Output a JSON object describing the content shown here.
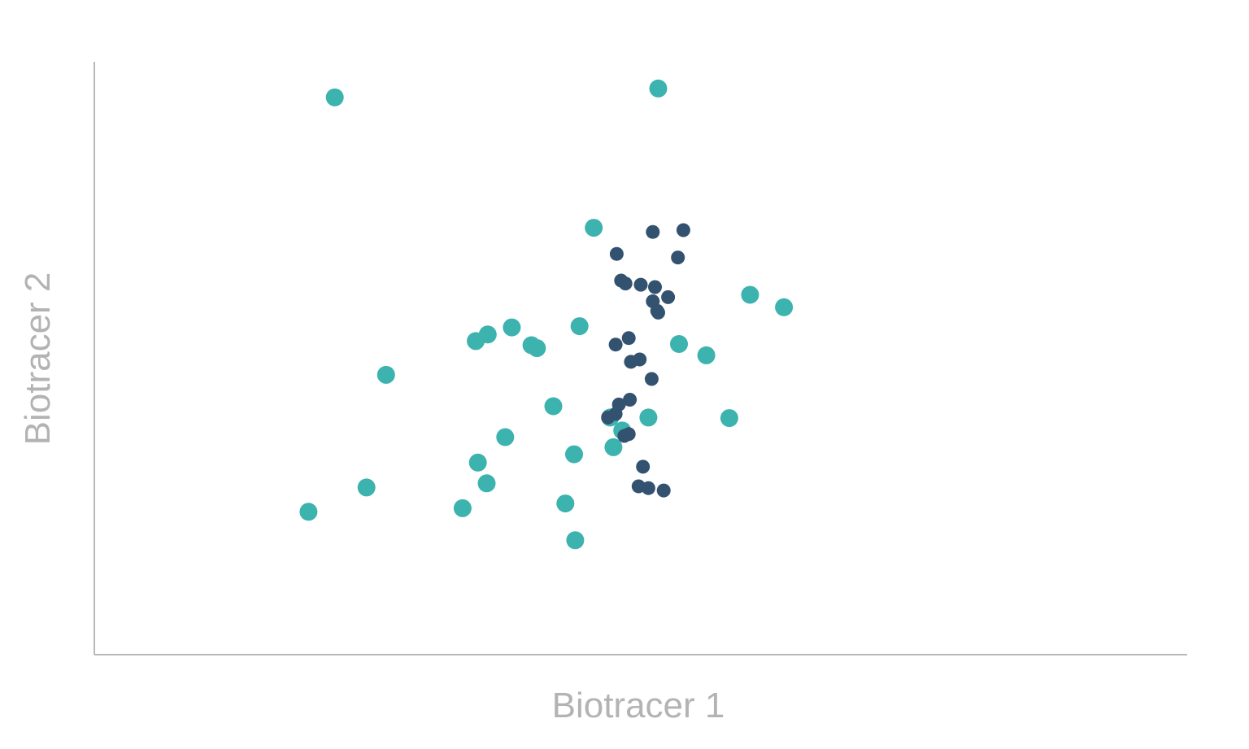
{
  "chart_data": {
    "type": "scatter",
    "title": "",
    "xlabel": "Biotracer 1",
    "ylabel": "Biotracer 2",
    "xlim": [
      0,
      10
    ],
    "ylim": [
      0,
      10
    ],
    "grid": false,
    "legend": "none",
    "series": [
      {
        "color": "#3cb3ae",
        "marker_size": "large",
        "x": [
          2.2,
          5.16,
          4.57,
          6.0,
          6.31,
          3.82,
          4.44,
          3.49,
          3.6,
          4.0,
          4.05,
          2.67,
          5.35,
          5.6,
          4.2,
          5.07,
          5.81,
          4.72,
          3.76,
          4.39,
          3.51,
          3.59,
          2.49,
          1.96,
          3.37,
          4.31,
          4.4,
          4.83,
          4.75
        ],
        "y": [
          9.4,
          9.55,
          7.2,
          6.07,
          5.86,
          5.52,
          5.54,
          5.29,
          5.4,
          5.22,
          5.17,
          4.72,
          5.24,
          5.05,
          4.19,
          4.0,
          3.99,
          4.0,
          3.67,
          3.38,
          3.24,
          2.89,
          2.82,
          2.41,
          2.47,
          2.55,
          1.93,
          3.78,
          3.5
        ]
      },
      {
        "color": "#33526f",
        "marker_size": "small",
        "x": [
          5.11,
          5.39,
          5.34,
          4.78,
          4.82,
          4.86,
          5.0,
          5.13,
          5.25,
          5.11,
          5.16,
          5.15,
          4.89,
          4.77,
          4.99,
          4.91,
          5.1,
          4.9,
          4.8,
          4.77,
          4.7,
          4.89,
          4.85,
          5.02,
          4.98,
          5.07,
          5.21
        ],
        "y": [
          7.13,
          7.16,
          6.7,
          6.76,
          6.31,
          6.26,
          6.24,
          6.2,
          6.03,
          5.96,
          5.77,
          5.8,
          5.34,
          5.23,
          4.98,
          4.94,
          4.65,
          4.3,
          4.22,
          4.06,
          4.0,
          3.72,
          3.69,
          3.17,
          2.84,
          2.81,
          2.77
        ]
      }
    ]
  }
}
